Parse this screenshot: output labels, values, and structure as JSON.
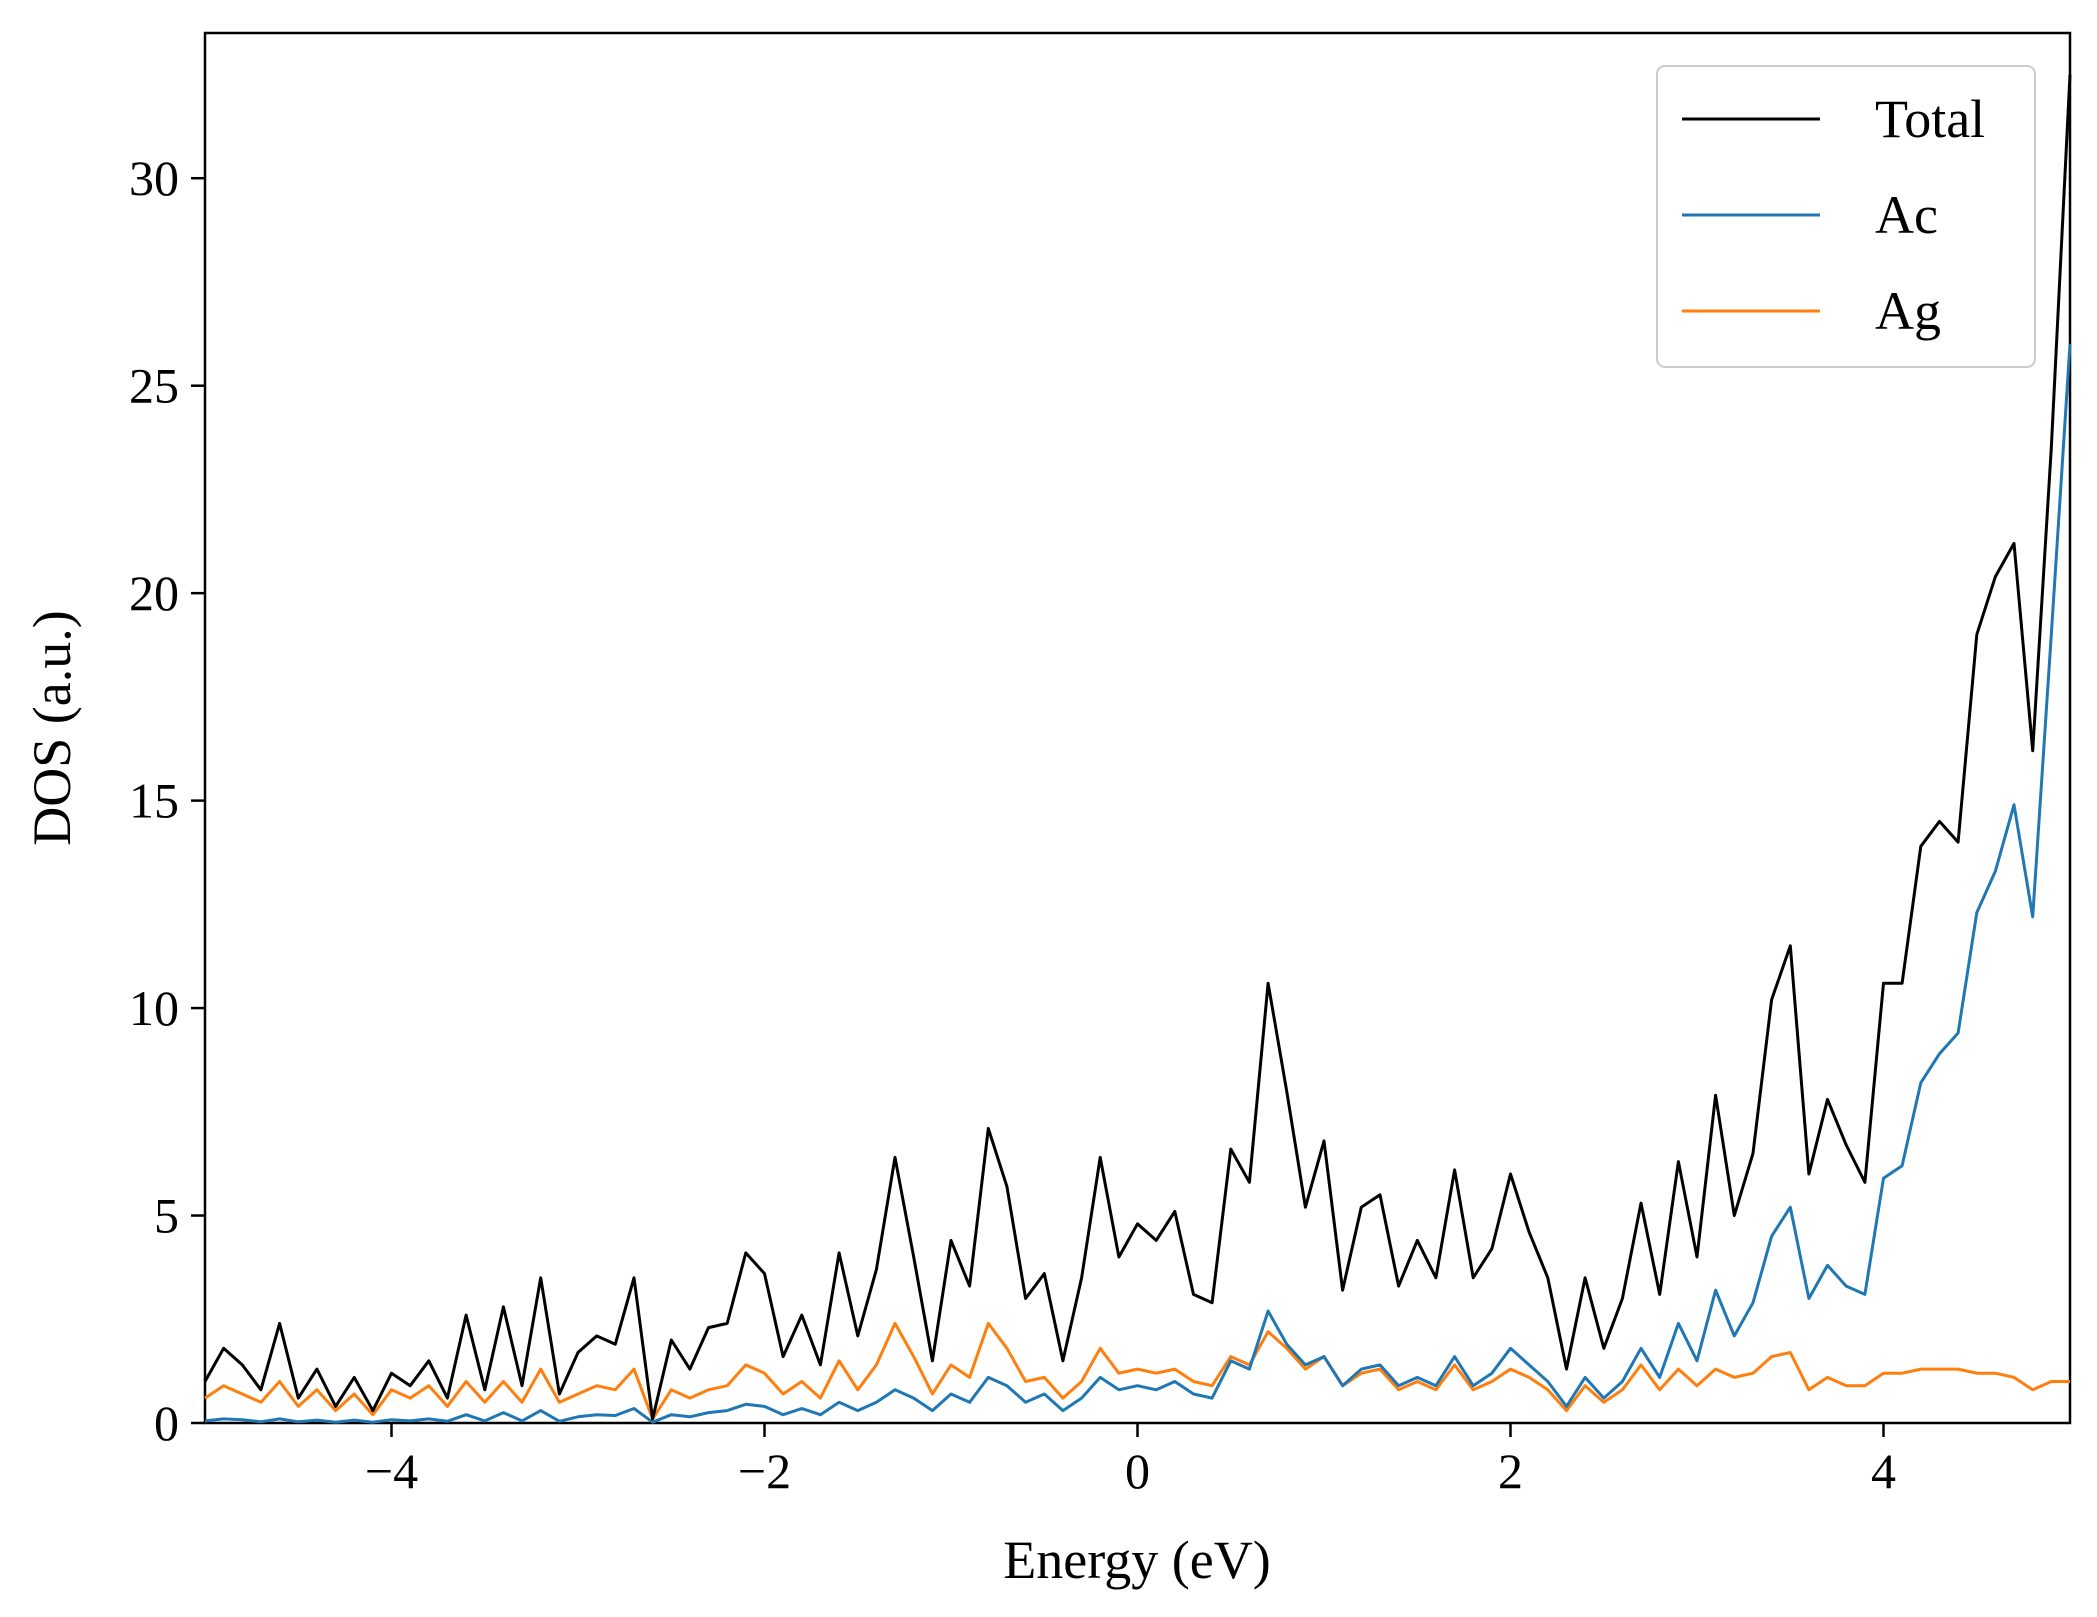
{
  "chart_data": {
    "type": "line",
    "title": "",
    "xlabel": "Energy (eV)",
    "ylabel": "DOS (a.u.)",
    "xlim": [
      -5,
      5
    ],
    "ylim": [
      0,
      33.5
    ],
    "xticks": [
      -4,
      -2,
      0,
      2,
      4
    ],
    "xtick_labels": [
      "−4",
      "−2",
      "0",
      "2",
      "4"
    ],
    "yticks": [
      0,
      5,
      10,
      15,
      20,
      25,
      30
    ],
    "ytick_labels": [
      "0",
      "5",
      "10",
      "15",
      "20",
      "25",
      "30"
    ],
    "grid": false,
    "legend_position": "top-right",
    "x": [
      -5.0,
      -4.9,
      -4.8,
      -4.7,
      -4.6,
      -4.5,
      -4.4,
      -4.3,
      -4.2,
      -4.1,
      -4.0,
      -3.9,
      -3.8,
      -3.7,
      -3.6,
      -3.5,
      -3.4,
      -3.3,
      -3.2,
      -3.1,
      -3.0,
      -2.9,
      -2.8,
      -2.7,
      -2.6,
      -2.5,
      -2.4,
      -2.3,
      -2.2,
      -2.1,
      -2.0,
      -1.9,
      -1.8,
      -1.7,
      -1.6,
      -1.5,
      -1.4,
      -1.3,
      -1.2,
      -1.1,
      -1.0,
      -0.9,
      -0.8,
      -0.7,
      -0.6,
      -0.5,
      -0.4,
      -0.3,
      -0.2,
      -0.1,
      0.0,
      0.1,
      0.2,
      0.3,
      0.4,
      0.5,
      0.6,
      0.7,
      0.8,
      0.9,
      1.0,
      1.1,
      1.2,
      1.3,
      1.4,
      1.5,
      1.6,
      1.7,
      1.8,
      1.9,
      2.0,
      2.1,
      2.2,
      2.3,
      2.4,
      2.5,
      2.6,
      2.7,
      2.8,
      2.9,
      3.0,
      3.1,
      3.2,
      3.3,
      3.4,
      3.5,
      3.6,
      3.7,
      3.8,
      3.9,
      4.0,
      4.1,
      4.2,
      4.3,
      4.4,
      4.5,
      4.6,
      4.7,
      4.8,
      4.9,
      5.0
    ],
    "series": [
      {
        "name": "Total",
        "color": "#000000",
        "values": [
          1.0,
          1.8,
          1.4,
          0.8,
          2.4,
          0.6,
          1.3,
          0.4,
          1.1,
          0.3,
          1.2,
          0.9,
          1.5,
          0.6,
          2.6,
          0.8,
          2.8,
          0.9,
          3.5,
          0.7,
          1.7,
          2.1,
          1.9,
          3.5,
          0.1,
          2.0,
          1.3,
          2.3,
          2.4,
          4.1,
          3.6,
          1.6,
          2.6,
          1.4,
          4.1,
          2.1,
          3.7,
          6.4,
          4.0,
          1.5,
          4.4,
          3.3,
          7.1,
          5.7,
          3.0,
          3.6,
          1.5,
          3.5,
          6.4,
          4.0,
          4.8,
          4.4,
          5.1,
          3.1,
          2.9,
          6.6,
          5.8,
          10.6,
          8.0,
          5.2,
          6.8,
          3.2,
          5.2,
          5.5,
          3.3,
          4.4,
          3.5,
          6.1,
          3.5,
          4.2,
          6.0,
          4.6,
          3.5,
          1.3,
          3.5,
          1.8,
          3.0,
          5.3,
          3.1,
          6.3,
          4.0,
          7.9,
          5.0,
          6.5,
          10.2,
          11.5,
          6.0,
          7.8,
          6.7,
          5.8,
          10.6,
          10.6,
          13.9,
          14.5,
          14.0,
          19.0,
          20.4,
          21.2,
          16.2,
          23.5,
          32.5
        ]
      },
      {
        "name": "Ac",
        "color": "#1f77b4",
        "values": [
          0.05,
          0.1,
          0.08,
          0.03,
          0.1,
          0.03,
          0.07,
          0.02,
          0.07,
          0.02,
          0.08,
          0.05,
          0.1,
          0.04,
          0.2,
          0.05,
          0.25,
          0.05,
          0.3,
          0.04,
          0.15,
          0.2,
          0.18,
          0.35,
          0.02,
          0.2,
          0.15,
          0.25,
          0.3,
          0.45,
          0.4,
          0.2,
          0.35,
          0.2,
          0.5,
          0.3,
          0.5,
          0.8,
          0.6,
          0.3,
          0.7,
          0.5,
          1.1,
          0.9,
          0.5,
          0.7,
          0.3,
          0.6,
          1.1,
          0.8,
          0.9,
          0.8,
          1.0,
          0.7,
          0.6,
          1.5,
          1.3,
          2.7,
          1.9,
          1.4,
          1.6,
          0.9,
          1.3,
          1.4,
          0.9,
          1.1,
          0.9,
          1.6,
          0.9,
          1.2,
          1.8,
          1.4,
          1.0,
          0.4,
          1.1,
          0.6,
          1.0,
          1.8,
          1.1,
          2.4,
          1.5,
          3.2,
          2.1,
          2.9,
          4.5,
          5.2,
          3.0,
          3.8,
          3.3,
          3.1,
          5.9,
          6.2,
          8.2,
          8.9,
          9.4,
          12.3,
          13.3,
          14.9,
          12.2,
          19.0,
          26.0
        ]
      },
      {
        "name": "Ag",
        "color": "#ff7f0e",
        "values": [
          0.6,
          0.9,
          0.7,
          0.5,
          1.0,
          0.4,
          0.8,
          0.3,
          0.7,
          0.2,
          0.8,
          0.6,
          0.9,
          0.4,
          1.0,
          0.5,
          1.0,
          0.5,
          1.3,
          0.5,
          0.7,
          0.9,
          0.8,
          1.3,
          0.1,
          0.8,
          0.6,
          0.8,
          0.9,
          1.4,
          1.2,
          0.7,
          1.0,
          0.6,
          1.5,
          0.8,
          1.4,
          2.4,
          1.6,
          0.7,
          1.4,
          1.1,
          2.4,
          1.8,
          1.0,
          1.1,
          0.6,
          1.0,
          1.8,
          1.2,
          1.3,
          1.2,
          1.3,
          1.0,
          0.9,
          1.6,
          1.4,
          2.2,
          1.8,
          1.3,
          1.6,
          0.9,
          1.2,
          1.3,
          0.8,
          1.0,
          0.8,
          1.4,
          0.8,
          1.0,
          1.3,
          1.1,
          0.8,
          0.3,
          0.9,
          0.5,
          0.8,
          1.4,
          0.8,
          1.3,
          0.9,
          1.3,
          1.1,
          1.2,
          1.6,
          1.7,
          0.8,
          1.1,
          0.9,
          0.9,
          1.2,
          1.2,
          1.3,
          1.3,
          1.3,
          1.2,
          1.2,
          1.1,
          0.8,
          1.0,
          1.0
        ]
      }
    ]
  }
}
